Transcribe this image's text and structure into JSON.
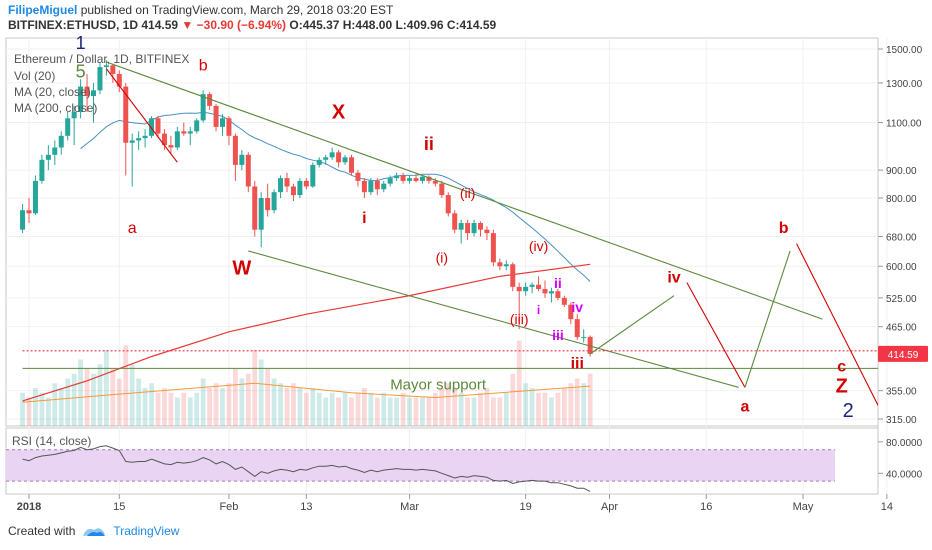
{
  "header": {
    "author": "FilipeMiguel",
    "published_text": "published on TradingView.com, March 29, 2018 03:20 EST",
    "symbol": "BITFINEX:ETHUSD, 1D",
    "last": "414.59",
    "change": "−30.90 (−6.94%)",
    "ohlc": "O:445.37 H:448.00 L:409.96 C:414.59"
  },
  "legend": {
    "title": "Ethereum / Dollar, 1D, BITFINEX",
    "vol": "Vol (20)",
    "ma20": "MA (20, close)",
    "ma200": "MA (200, close)"
  },
  "rsi_panel": {
    "label": "RSI (14, close)"
  },
  "footer": {
    "created_with": "Created with",
    "brand": "TradingView"
  },
  "colors": {
    "up": "#26a69a",
    "down": "#ef5350",
    "ma20": "#4a90c4",
    "ma200": "#e53935",
    "trend": "#5c8a3c",
    "wave_red": "#d50000",
    "wave_pink": "#d500f9",
    "wave_navy": "#1a237e",
    "rsi_line": "#555555",
    "rsi_band": "#ead4f4",
    "price_tag": "#f23645"
  },
  "chart_data": {
    "type": "candlestick",
    "price_axis": {
      "scale": "log",
      "ticks": [
        1500,
        1300,
        1100,
        900,
        800,
        680,
        600,
        525,
        465,
        355,
        315
      ],
      "current_price": 414.59,
      "current_label": "414.59"
    },
    "time_axis": {
      "labels": [
        "2018",
        "15",
        "Feb",
        "13",
        "Mar",
        "19",
        "Apr",
        "16",
        "May",
        "14"
      ],
      "label_dates": [
        "2018-01-01",
        "2018-01-15",
        "2018-02-01",
        "2018-02-13",
        "2018-03-01",
        "2018-03-19",
        "2018-04-01",
        "2018-04-16",
        "2018-05-01",
        "2018-05-14"
      ]
    },
    "candles": [
      {
        "date": "2017-12-31",
        "o": 700,
        "h": 780,
        "l": 690,
        "c": 760
      },
      {
        "date": "2018-01-01",
        "o": 760,
        "h": 800,
        "l": 720,
        "c": 750
      },
      {
        "date": "2018-01-02",
        "o": 750,
        "h": 880,
        "l": 745,
        "c": 860
      },
      {
        "date": "2018-01-03",
        "o": 860,
        "h": 960,
        "l": 850,
        "c": 940
      },
      {
        "date": "2018-01-04",
        "o": 940,
        "h": 1000,
        "l": 900,
        "c": 960
      },
      {
        "date": "2018-01-05",
        "o": 960,
        "h": 1020,
        "l": 920,
        "c": 990
      },
      {
        "date": "2018-01-06",
        "o": 990,
        "h": 1060,
        "l": 960,
        "c": 1040
      },
      {
        "date": "2018-01-07",
        "o": 1040,
        "h": 1150,
        "l": 1020,
        "c": 1120
      },
      {
        "date": "2018-01-08",
        "o": 1120,
        "h": 1180,
        "l": 1000,
        "c": 1150
      },
      {
        "date": "2018-01-09",
        "o": 1150,
        "h": 1320,
        "l": 1120,
        "c": 1280
      },
      {
        "date": "2018-01-10",
        "o": 1280,
        "h": 1350,
        "l": 1150,
        "c": 1230
      },
      {
        "date": "2018-01-11",
        "o": 1230,
        "h": 1300,
        "l": 1100,
        "c": 1260
      },
      {
        "date": "2018-01-12",
        "o": 1260,
        "h": 1420,
        "l": 1240,
        "c": 1390
      },
      {
        "date": "2018-01-13",
        "o": 1390,
        "h": 1430,
        "l": 1340,
        "c": 1400
      },
      {
        "date": "2018-01-14",
        "o": 1400,
        "h": 1410,
        "l": 1300,
        "c": 1350
      },
      {
        "date": "2018-01-15",
        "o": 1350,
        "h": 1370,
        "l": 1250,
        "c": 1280
      },
      {
        "date": "2018-01-16",
        "o": 1280,
        "h": 1300,
        "l": 880,
        "c": 1010
      },
      {
        "date": "2018-01-17",
        "o": 1010,
        "h": 1050,
        "l": 840,
        "c": 1020
      },
      {
        "date": "2018-01-18",
        "o": 1020,
        "h": 1060,
        "l": 980,
        "c": 1030
      },
      {
        "date": "2018-01-19",
        "o": 1030,
        "h": 1070,
        "l": 990,
        "c": 1040
      },
      {
        "date": "2018-01-20",
        "o": 1040,
        "h": 1130,
        "l": 1030,
        "c": 1120
      },
      {
        "date": "2018-01-21",
        "o": 1120,
        "h": 1130,
        "l": 1030,
        "c": 1050
      },
      {
        "date": "2018-01-22",
        "o": 1050,
        "h": 1070,
        "l": 980,
        "c": 1000
      },
      {
        "date": "2018-01-23",
        "o": 1000,
        "h": 1040,
        "l": 960,
        "c": 990
      },
      {
        "date": "2018-01-24",
        "o": 990,
        "h": 1080,
        "l": 980,
        "c": 1060
      },
      {
        "date": "2018-01-25",
        "o": 1060,
        "h": 1100,
        "l": 1040,
        "c": 1050
      },
      {
        "date": "2018-01-26",
        "o": 1050,
        "h": 1080,
        "l": 1000,
        "c": 1060
      },
      {
        "date": "2018-01-27",
        "o": 1060,
        "h": 1120,
        "l": 1050,
        "c": 1110
      },
      {
        "date": "2018-01-28",
        "o": 1110,
        "h": 1260,
        "l": 1100,
        "c": 1240
      },
      {
        "date": "2018-01-29",
        "o": 1240,
        "h": 1250,
        "l": 1160,
        "c": 1180
      },
      {
        "date": "2018-01-30",
        "o": 1180,
        "h": 1190,
        "l": 1060,
        "c": 1080
      },
      {
        "date": "2018-01-31",
        "o": 1080,
        "h": 1140,
        "l": 1040,
        "c": 1120
      },
      {
        "date": "2018-02-01",
        "o": 1120,
        "h": 1130,
        "l": 1000,
        "c": 1040
      },
      {
        "date": "2018-02-02",
        "o": 1040,
        "h": 1050,
        "l": 860,
        "c": 920
      },
      {
        "date": "2018-02-03",
        "o": 920,
        "h": 980,
        "l": 900,
        "c": 960
      },
      {
        "date": "2018-02-04",
        "o": 960,
        "h": 970,
        "l": 820,
        "c": 840
      },
      {
        "date": "2018-02-05",
        "o": 840,
        "h": 860,
        "l": 680,
        "c": 700
      },
      {
        "date": "2018-02-06",
        "o": 700,
        "h": 820,
        "l": 650,
        "c": 800
      },
      {
        "date": "2018-02-07",
        "o": 800,
        "h": 850,
        "l": 740,
        "c": 760
      },
      {
        "date": "2018-02-08",
        "o": 760,
        "h": 830,
        "l": 750,
        "c": 820
      },
      {
        "date": "2018-02-09",
        "o": 820,
        "h": 880,
        "l": 800,
        "c": 870
      },
      {
        "date": "2018-02-10",
        "o": 870,
        "h": 890,
        "l": 820,
        "c": 840
      },
      {
        "date": "2018-02-11",
        "o": 840,
        "h": 850,
        "l": 790,
        "c": 810
      },
      {
        "date": "2018-02-12",
        "o": 810,
        "h": 870,
        "l": 800,
        "c": 860
      },
      {
        "date": "2018-02-13",
        "o": 860,
        "h": 870,
        "l": 830,
        "c": 840
      },
      {
        "date": "2018-02-14",
        "o": 840,
        "h": 930,
        "l": 835,
        "c": 920
      },
      {
        "date": "2018-02-15",
        "o": 920,
        "h": 950,
        "l": 910,
        "c": 940
      },
      {
        "date": "2018-02-16",
        "o": 940,
        "h": 960,
        "l": 920,
        "c": 950
      },
      {
        "date": "2018-02-17",
        "o": 950,
        "h": 990,
        "l": 940,
        "c": 970
      },
      {
        "date": "2018-02-18",
        "o": 970,
        "h": 980,
        "l": 910,
        "c": 930
      },
      {
        "date": "2018-02-19",
        "o": 930,
        "h": 960,
        "l": 920,
        "c": 950
      },
      {
        "date": "2018-02-20",
        "o": 950,
        "h": 960,
        "l": 880,
        "c": 890
      },
      {
        "date": "2018-02-21",
        "o": 890,
        "h": 900,
        "l": 840,
        "c": 860
      },
      {
        "date": "2018-02-22",
        "o": 860,
        "h": 870,
        "l": 800,
        "c": 820
      },
      {
        "date": "2018-02-23",
        "o": 820,
        "h": 870,
        "l": 810,
        "c": 860
      },
      {
        "date": "2018-02-24",
        "o": 860,
        "h": 870,
        "l": 810,
        "c": 830
      },
      {
        "date": "2018-02-25",
        "o": 830,
        "h": 860,
        "l": 820,
        "c": 850
      },
      {
        "date": "2018-02-26",
        "o": 850,
        "h": 880,
        "l": 840,
        "c": 870
      },
      {
        "date": "2018-02-27",
        "o": 870,
        "h": 890,
        "l": 860,
        "c": 880
      },
      {
        "date": "2018-02-28",
        "o": 880,
        "h": 890,
        "l": 850,
        "c": 860
      },
      {
        "date": "2018-03-01",
        "o": 860,
        "h": 880,
        "l": 850,
        "c": 870
      },
      {
        "date": "2018-03-02",
        "o": 870,
        "h": 885,
        "l": 855,
        "c": 860
      },
      {
        "date": "2018-03-03",
        "o": 860,
        "h": 880,
        "l": 850,
        "c": 875
      },
      {
        "date": "2018-03-04",
        "o": 875,
        "h": 880,
        "l": 850,
        "c": 860
      },
      {
        "date": "2018-03-05",
        "o": 860,
        "h": 870,
        "l": 840,
        "c": 850
      },
      {
        "date": "2018-03-06",
        "o": 850,
        "h": 860,
        "l": 800,
        "c": 810
      },
      {
        "date": "2018-03-07",
        "o": 810,
        "h": 820,
        "l": 740,
        "c": 750
      },
      {
        "date": "2018-03-08",
        "o": 750,
        "h": 760,
        "l": 690,
        "c": 700
      },
      {
        "date": "2018-03-09",
        "o": 700,
        "h": 730,
        "l": 660,
        "c": 720
      },
      {
        "date": "2018-03-10",
        "o": 720,
        "h": 730,
        "l": 670,
        "c": 690
      },
      {
        "date": "2018-03-11",
        "o": 690,
        "h": 730,
        "l": 680,
        "c": 720
      },
      {
        "date": "2018-03-12",
        "o": 720,
        "h": 725,
        "l": 680,
        "c": 700
      },
      {
        "date": "2018-03-13",
        "o": 700,
        "h": 710,
        "l": 670,
        "c": 690
      },
      {
        "date": "2018-03-14",
        "o": 690,
        "h": 700,
        "l": 600,
        "c": 610
      },
      {
        "date": "2018-03-15",
        "o": 610,
        "h": 620,
        "l": 590,
        "c": 600
      },
      {
        "date": "2018-03-16",
        "o": 600,
        "h": 615,
        "l": 590,
        "c": 605
      },
      {
        "date": "2018-03-17",
        "o": 605,
        "h": 610,
        "l": 540,
        "c": 550
      },
      {
        "date": "2018-03-18",
        "o": 550,
        "h": 560,
        "l": 460,
        "c": 540
      },
      {
        "date": "2018-03-19",
        "o": 540,
        "h": 560,
        "l": 530,
        "c": 550
      },
      {
        "date": "2018-03-20",
        "o": 550,
        "h": 560,
        "l": 535,
        "c": 555
      },
      {
        "date": "2018-03-21",
        "o": 555,
        "h": 575,
        "l": 540,
        "c": 545
      },
      {
        "date": "2018-03-22",
        "o": 545,
        "h": 565,
        "l": 525,
        "c": 535
      },
      {
        "date": "2018-03-23",
        "o": 535,
        "h": 548,
        "l": 515,
        "c": 540
      },
      {
        "date": "2018-03-24",
        "o": 540,
        "h": 545,
        "l": 520,
        "c": 525
      },
      {
        "date": "2018-03-25",
        "o": 525,
        "h": 530,
        "l": 505,
        "c": 510
      },
      {
        "date": "2018-03-26",
        "o": 510,
        "h": 515,
        "l": 470,
        "c": 480
      },
      {
        "date": "2018-03-27",
        "o": 480,
        "h": 490,
        "l": 440,
        "c": 445
      },
      {
        "date": "2018-03-28",
        "o": 445,
        "h": 460,
        "l": 435,
        "c": 445
      },
      {
        "date": "2018-03-29",
        "o": 445.37,
        "h": 448,
        "l": 409.96,
        "c": 414.59
      }
    ],
    "volume": [
      0.35,
      0.3,
      0.4,
      0.35,
      0.3,
      0.45,
      0.4,
      0.5,
      0.55,
      0.7,
      0.6,
      0.55,
      0.65,
      0.8,
      0.6,
      0.5,
      0.85,
      0.65,
      0.5,
      0.4,
      0.45,
      0.35,
      0.4,
      0.35,
      0.3,
      0.35,
      0.3,
      0.35,
      0.5,
      0.4,
      0.45,
      0.4,
      0.45,
      0.6,
      0.5,
      0.55,
      0.8,
      0.7,
      0.6,
      0.5,
      0.45,
      0.4,
      0.45,
      0.4,
      0.35,
      0.4,
      0.35,
      0.3,
      0.35,
      0.3,
      0.35,
      0.3,
      0.35,
      0.4,
      0.35,
      0.3,
      0.35,
      0.3,
      0.3,
      0.35,
      0.3,
      0.3,
      0.3,
      0.3,
      0.35,
      0.4,
      0.45,
      0.4,
      0.35,
      0.3,
      0.3,
      0.35,
      0.4,
      0.3,
      0.3,
      0.35,
      0.55,
      0.9,
      0.45,
      0.4,
      0.35,
      0.35,
      0.3,
      0.35,
      0.4,
      0.45,
      0.5,
      0.45,
      0.55
    ],
    "rsi_levels": [
      70,
      30
    ],
    "rsi_ticks": [
      80,
      40
    ],
    "rsi_tick_labels": [
      "80.0000",
      "40.0000"
    ],
    "rsi": [
      58,
      56,
      60,
      62,
      63,
      64,
      66,
      68,
      69,
      73,
      70,
      71,
      74,
      75,
      72,
      69,
      55,
      54,
      55,
      55,
      58,
      55,
      52,
      51,
      54,
      53,
      54,
      56,
      60,
      57,
      52,
      55,
      51,
      45,
      48,
      42,
      36,
      42,
      40,
      43,
      45,
      44,
      42,
      45,
      44,
      47,
      49,
      49,
      50,
      48,
      49,
      46,
      44,
      41,
      44,
      42,
      44,
      45,
      46,
      45,
      45,
      44,
      45,
      44,
      43,
      40,
      37,
      34,
      36,
      35,
      37,
      36,
      35,
      31,
      30,
      31,
      27,
      29,
      30,
      31,
      30,
      30,
      28,
      28,
      26,
      24,
      21,
      21,
      17
    ],
    "annotations": {
      "waves": [
        {
          "text": "1",
          "color": "navy"
        },
        {
          "text": "5",
          "color": "green"
        },
        {
          "text": "a",
          "color": "red"
        },
        {
          "text": "b",
          "color": "red"
        },
        {
          "text": "X",
          "color": "red"
        },
        {
          "text": "W",
          "color": "red"
        },
        {
          "text": "ii",
          "color": "red"
        },
        {
          "text": "i",
          "color": "red"
        },
        {
          "text": "(ii)",
          "color": "red"
        },
        {
          "text": "(i)",
          "color": "red"
        },
        {
          "text": "(iv)",
          "color": "red"
        },
        {
          "text": "(iii)",
          "color": "red"
        },
        {
          "text": "ii",
          "color": "pink"
        },
        {
          "text": "i",
          "color": "pink"
        },
        {
          "text": "iv",
          "color": "pink"
        },
        {
          "text": "iii",
          "color": "pink"
        },
        {
          "text": "iii",
          "color": "red"
        },
        {
          "text": "iv",
          "color": "red"
        },
        {
          "text": "a",
          "color": "red"
        },
        {
          "text": "b",
          "color": "red"
        },
        {
          "text": "c",
          "color": "red"
        },
        {
          "text": "Z",
          "color": "red"
        },
        {
          "text": "2",
          "color": "navy"
        }
      ],
      "support_label": "Mayor support"
    }
  }
}
